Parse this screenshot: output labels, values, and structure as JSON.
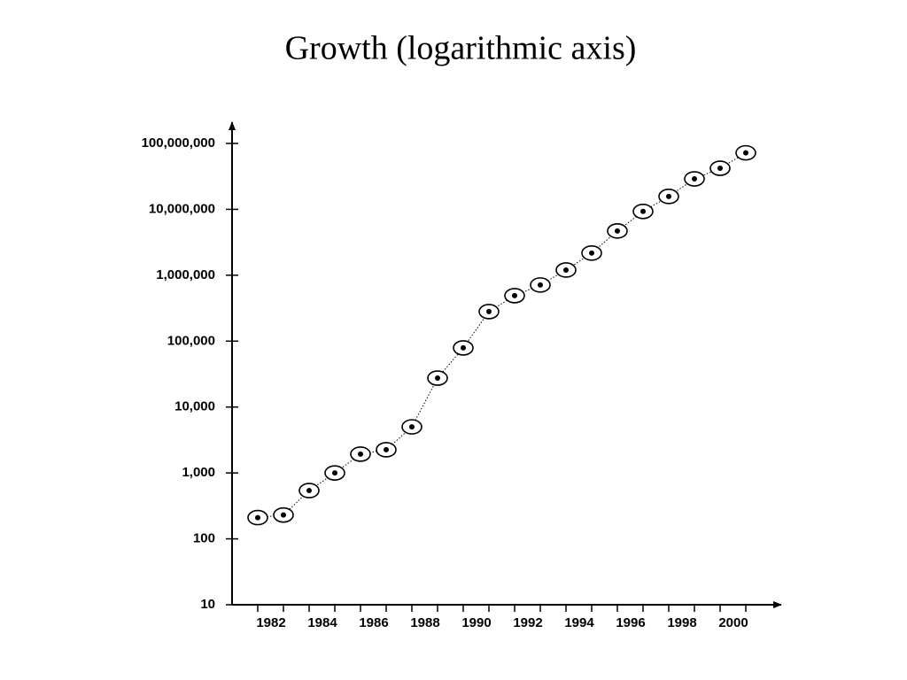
{
  "chart_data": {
    "type": "scatter",
    "title": "Growth (logarithmic axis)",
    "x": [
      1981,
      1982,
      1983,
      1984,
      1985,
      1986,
      1987,
      1988,
      1989,
      1990,
      1991,
      1992,
      1993,
      1994,
      1995,
      1996,
      1997,
      1998,
      1999,
      2000
    ],
    "values": [
      210,
      230,
      540,
      1000,
      1930,
      2250,
      5000,
      27500,
      79000,
      281000,
      490000,
      711000,
      1200000,
      2170000,
      4700000,
      9300000,
      15700000,
      29000000,
      42000000,
      72000000
    ],
    "xlim": [
      1980,
      2001
    ],
    "xticks": [
      1982,
      1984,
      1986,
      1988,
      1990,
      1992,
      1994,
      1996,
      1998,
      2000
    ],
    "xminor_ticks": [
      1981,
      1983,
      1985,
      1987,
      1989,
      1991,
      1993,
      1995,
      1997,
      1999
    ],
    "ylim": [
      10,
      100000000
    ],
    "yscale": "log",
    "yticks": [
      10,
      100,
      {
        "value": 1000,
        "label": "1,000"
      },
      {
        "value": 10000,
        "label": "10,000"
      },
      {
        "value": 100000,
        "label": "100,000"
      },
      {
        "value": 1000000,
        "label": "1,000,000"
      },
      {
        "value": 10000000,
        "label": "10,000,000"
      },
      {
        "value": 100000000,
        "label": "100,000,000"
      }
    ],
    "color": "#000000",
    "line_style": "dotted"
  }
}
